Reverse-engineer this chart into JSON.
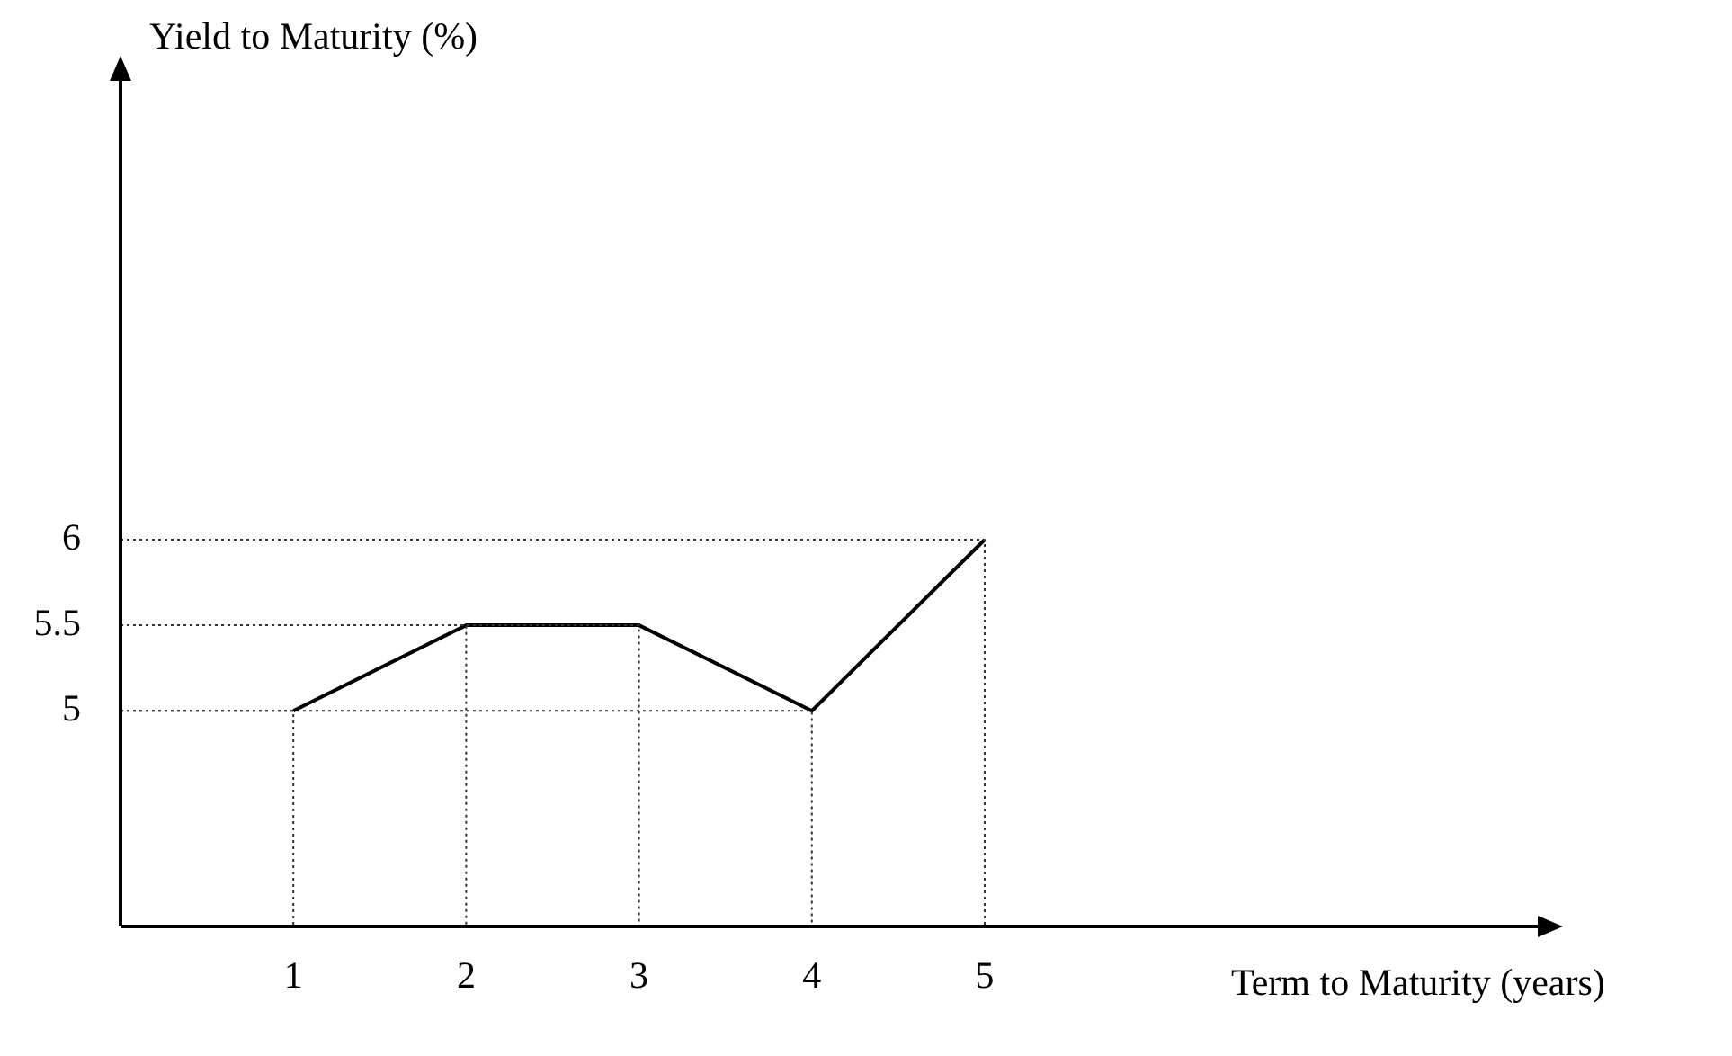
{
  "chart_data": {
    "type": "line",
    "xlabel": "Term to Maturity (years)",
    "ylabel": "Yield to Maturity (%)",
    "x": [
      1,
      2,
      3,
      4,
      5
    ],
    "series": [
      {
        "color": "#333333",
        "line_style": "dotted",
        "x": [
          0,
          1,
          1
        ],
        "values": [
          5,
          5,
          3.74
        ]
      },
      {
        "color": "#333333",
        "line_style": "dotted",
        "x": [
          0,
          2,
          2
        ],
        "values": [
          5.5,
          5.5,
          3.74
        ]
      },
      {
        "color": "#333333",
        "line_style": "dotted",
        "x": [
          0,
          3,
          3
        ],
        "values": [
          5.5,
          5.5,
          3.74
        ]
      },
      {
        "color": "#333333",
        "line_style": "dotted",
        "x": [
          0,
          4,
          4
        ],
        "values": [
          5,
          5,
          3.74
        ]
      },
      {
        "color": "#333333",
        "line_style": "dotted",
        "x": [
          0,
          5,
          5
        ],
        "values": [
          6,
          6,
          3.74
        ]
      },
      {
        "color": "#000000",
        "values": [
          5,
          5.5,
          5.5,
          5,
          6
        ]
      }
    ],
    "xlim": [
      0,
      8.2
    ],
    "ylim": [
      3.74,
      8.68
    ],
    "xticks": [
      1,
      2,
      3,
      4,
      5
    ],
    "yticks": [
      5,
      5.5,
      6
    ],
    "grid": false,
    "marker": "none",
    "line_style": "solid"
  }
}
